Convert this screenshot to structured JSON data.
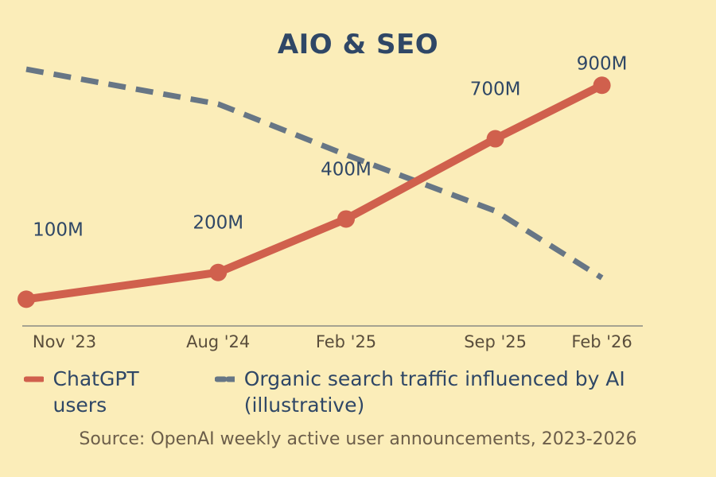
{
  "colors": {
    "background": "#FBEDB9",
    "title": "#2F4766",
    "text": "#2F4766",
    "axis": "#A6A391",
    "tick_text": "#5A4E3C",
    "chatgpt": "#D0604D",
    "organic": "#677685",
    "source": "#6C5E4A"
  },
  "legend": {
    "chatgpt_label": "ChatGPT users",
    "organic_label": "Organic search traffic influenced by AI (illustrative)"
  },
  "source_text": "Source: OpenAI weekly active user announcements, 2023-2026",
  "chart_data": {
    "type": "line",
    "title": "AIO & SEO",
    "xlabel": "",
    "ylabel": "",
    "x": [
      "Nov '23",
      "Aug '24",
      "Feb '25",
      "Sep '25",
      "Feb '26"
    ],
    "x_months": [
      0,
      9,
      15,
      22,
      27
    ],
    "ylim": [
      0,
      1100
    ],
    "grid": false,
    "legend_position": "bottom",
    "series": [
      {
        "name": "ChatGPT users",
        "style": "solid",
        "markers": true,
        "values": [
          100,
          200,
          400,
          700,
          900
        ],
        "data_labels": [
          "100M",
          "200M",
          "400M",
          "700M",
          "900M"
        ]
      },
      {
        "name": "Organic search traffic influenced by AI (illustrative)",
        "style": "dashed",
        "markers": false,
        "values": [
          960,
          830,
          640,
          430,
          180
        ]
      }
    ]
  }
}
